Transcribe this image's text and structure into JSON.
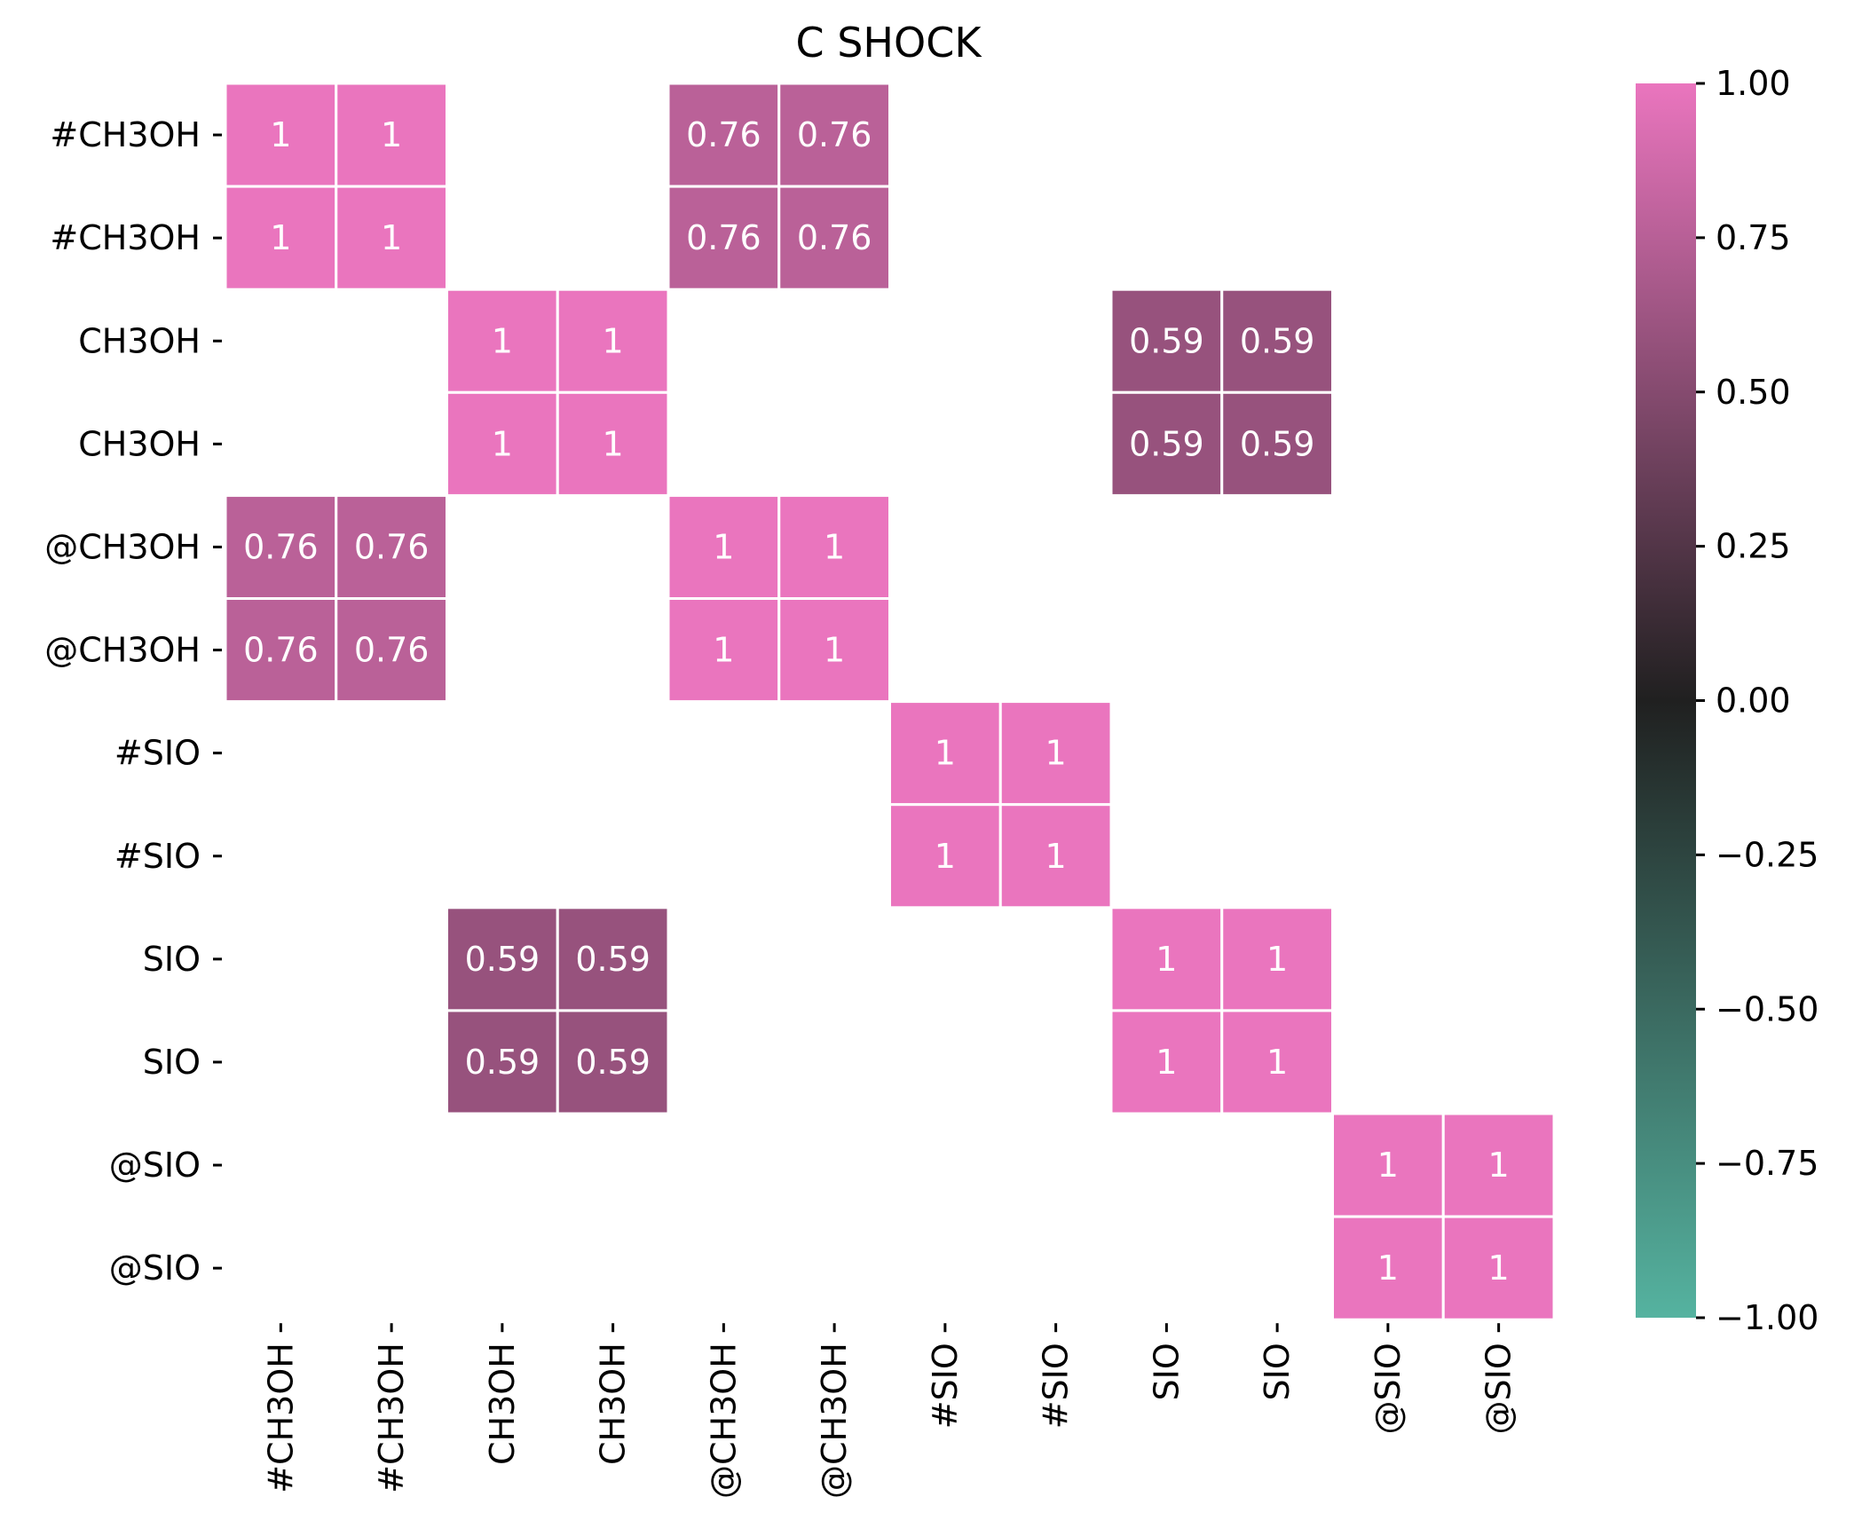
{
  "chart_data": {
    "type": "heatmap",
    "title": "C SHOCK",
    "xlabel": "",
    "ylabel": "",
    "row_labels": [
      "#CH3OH",
      "#CH3OH",
      "CH3OH",
      "CH3OH",
      "@CH3OH",
      "@CH3OH",
      "#SIO",
      "#SIO",
      "SIO",
      "SIO",
      "@SIO",
      "@SIO"
    ],
    "col_labels": [
      "#CH3OH",
      "#CH3OH",
      "CH3OH",
      "CH3OH",
      "@CH3OH",
      "@CH3OH",
      "#SIO",
      "#SIO",
      "SIO",
      "SIO",
      "@SIO",
      "@SIO"
    ],
    "values": [
      [
        1,
        1,
        null,
        null,
        0.76,
        0.76,
        null,
        null,
        null,
        null,
        null,
        null
      ],
      [
        1,
        1,
        null,
        null,
        0.76,
        0.76,
        null,
        null,
        null,
        null,
        null,
        null
      ],
      [
        null,
        null,
        1,
        1,
        null,
        null,
        null,
        null,
        0.59,
        0.59,
        null,
        null
      ],
      [
        null,
        null,
        1,
        1,
        null,
        null,
        null,
        null,
        0.59,
        0.59,
        null,
        null
      ],
      [
        0.76,
        0.76,
        null,
        null,
        1,
        1,
        null,
        null,
        null,
        null,
        null,
        null
      ],
      [
        0.76,
        0.76,
        null,
        null,
        1,
        1,
        null,
        null,
        null,
        null,
        null,
        null
      ],
      [
        null,
        null,
        null,
        null,
        null,
        null,
        1,
        1,
        null,
        null,
        null,
        null
      ],
      [
        null,
        null,
        null,
        null,
        null,
        null,
        1,
        1,
        null,
        null,
        null,
        null
      ],
      [
        null,
        null,
        0.59,
        0.59,
        null,
        null,
        null,
        null,
        1,
        1,
        null,
        null
      ],
      [
        null,
        null,
        0.59,
        0.59,
        null,
        null,
        null,
        null,
        1,
        1,
        null,
        null
      ],
      [
        null,
        null,
        null,
        null,
        null,
        null,
        null,
        null,
        null,
        null,
        1,
        1
      ],
      [
        null,
        null,
        null,
        null,
        null,
        null,
        null,
        null,
        null,
        null,
        1,
        1
      ]
    ],
    "vmin": -1,
    "vmax": 1,
    "colorbar": {
      "ticks": [
        1.0,
        0.75,
        0.5,
        0.25,
        0.0,
        -0.25,
        -0.5,
        -0.75,
        -1.0
      ],
      "tick_labels": [
        "1.00",
        "0.75",
        "0.50",
        "0.25",
        "0.00",
        "−0.25",
        "−0.50",
        "−0.75",
        "−1.00"
      ]
    },
    "colormap": {
      "negative_end": "#55b3a0",
      "center": "#202020",
      "positive_end": "#ea75be"
    },
    "cell_text_color": "#ffffff",
    "cell_border_color": "#ffffff"
  }
}
